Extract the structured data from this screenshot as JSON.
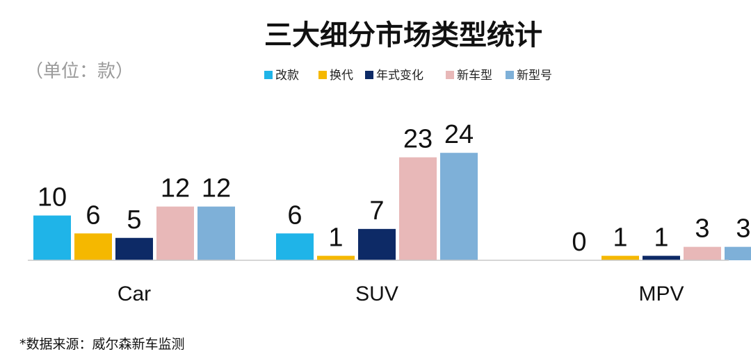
{
  "chart_data": {
    "type": "bar",
    "title": "三大细分市场类型统计",
    "unit_note": "（单位：款）",
    "source": "*数据来源：威尔森新车监测",
    "categories": [
      "Car",
      "SUV",
      "MPV"
    ],
    "series": [
      {
        "name": "改款",
        "color": "#1fb4e8",
        "values": [
          10,
          6,
          0
        ]
      },
      {
        "name": "换代",
        "color": "#f5b800",
        "values": [
          6,
          1,
          1
        ]
      },
      {
        "name": "年式变化",
        "color": "#0d2a66",
        "values": [
          5,
          7,
          1
        ]
      },
      {
        "name": "新车型",
        "color": "#e8b8b8",
        "values": [
          12,
          23,
          3
        ]
      },
      {
        "name": "新型号",
        "color": "#7eb0d8",
        "values": [
          12,
          24,
          3
        ]
      }
    ],
    "ylim": [
      0,
      24
    ],
    "grid": false,
    "legend_position": "top-center"
  }
}
